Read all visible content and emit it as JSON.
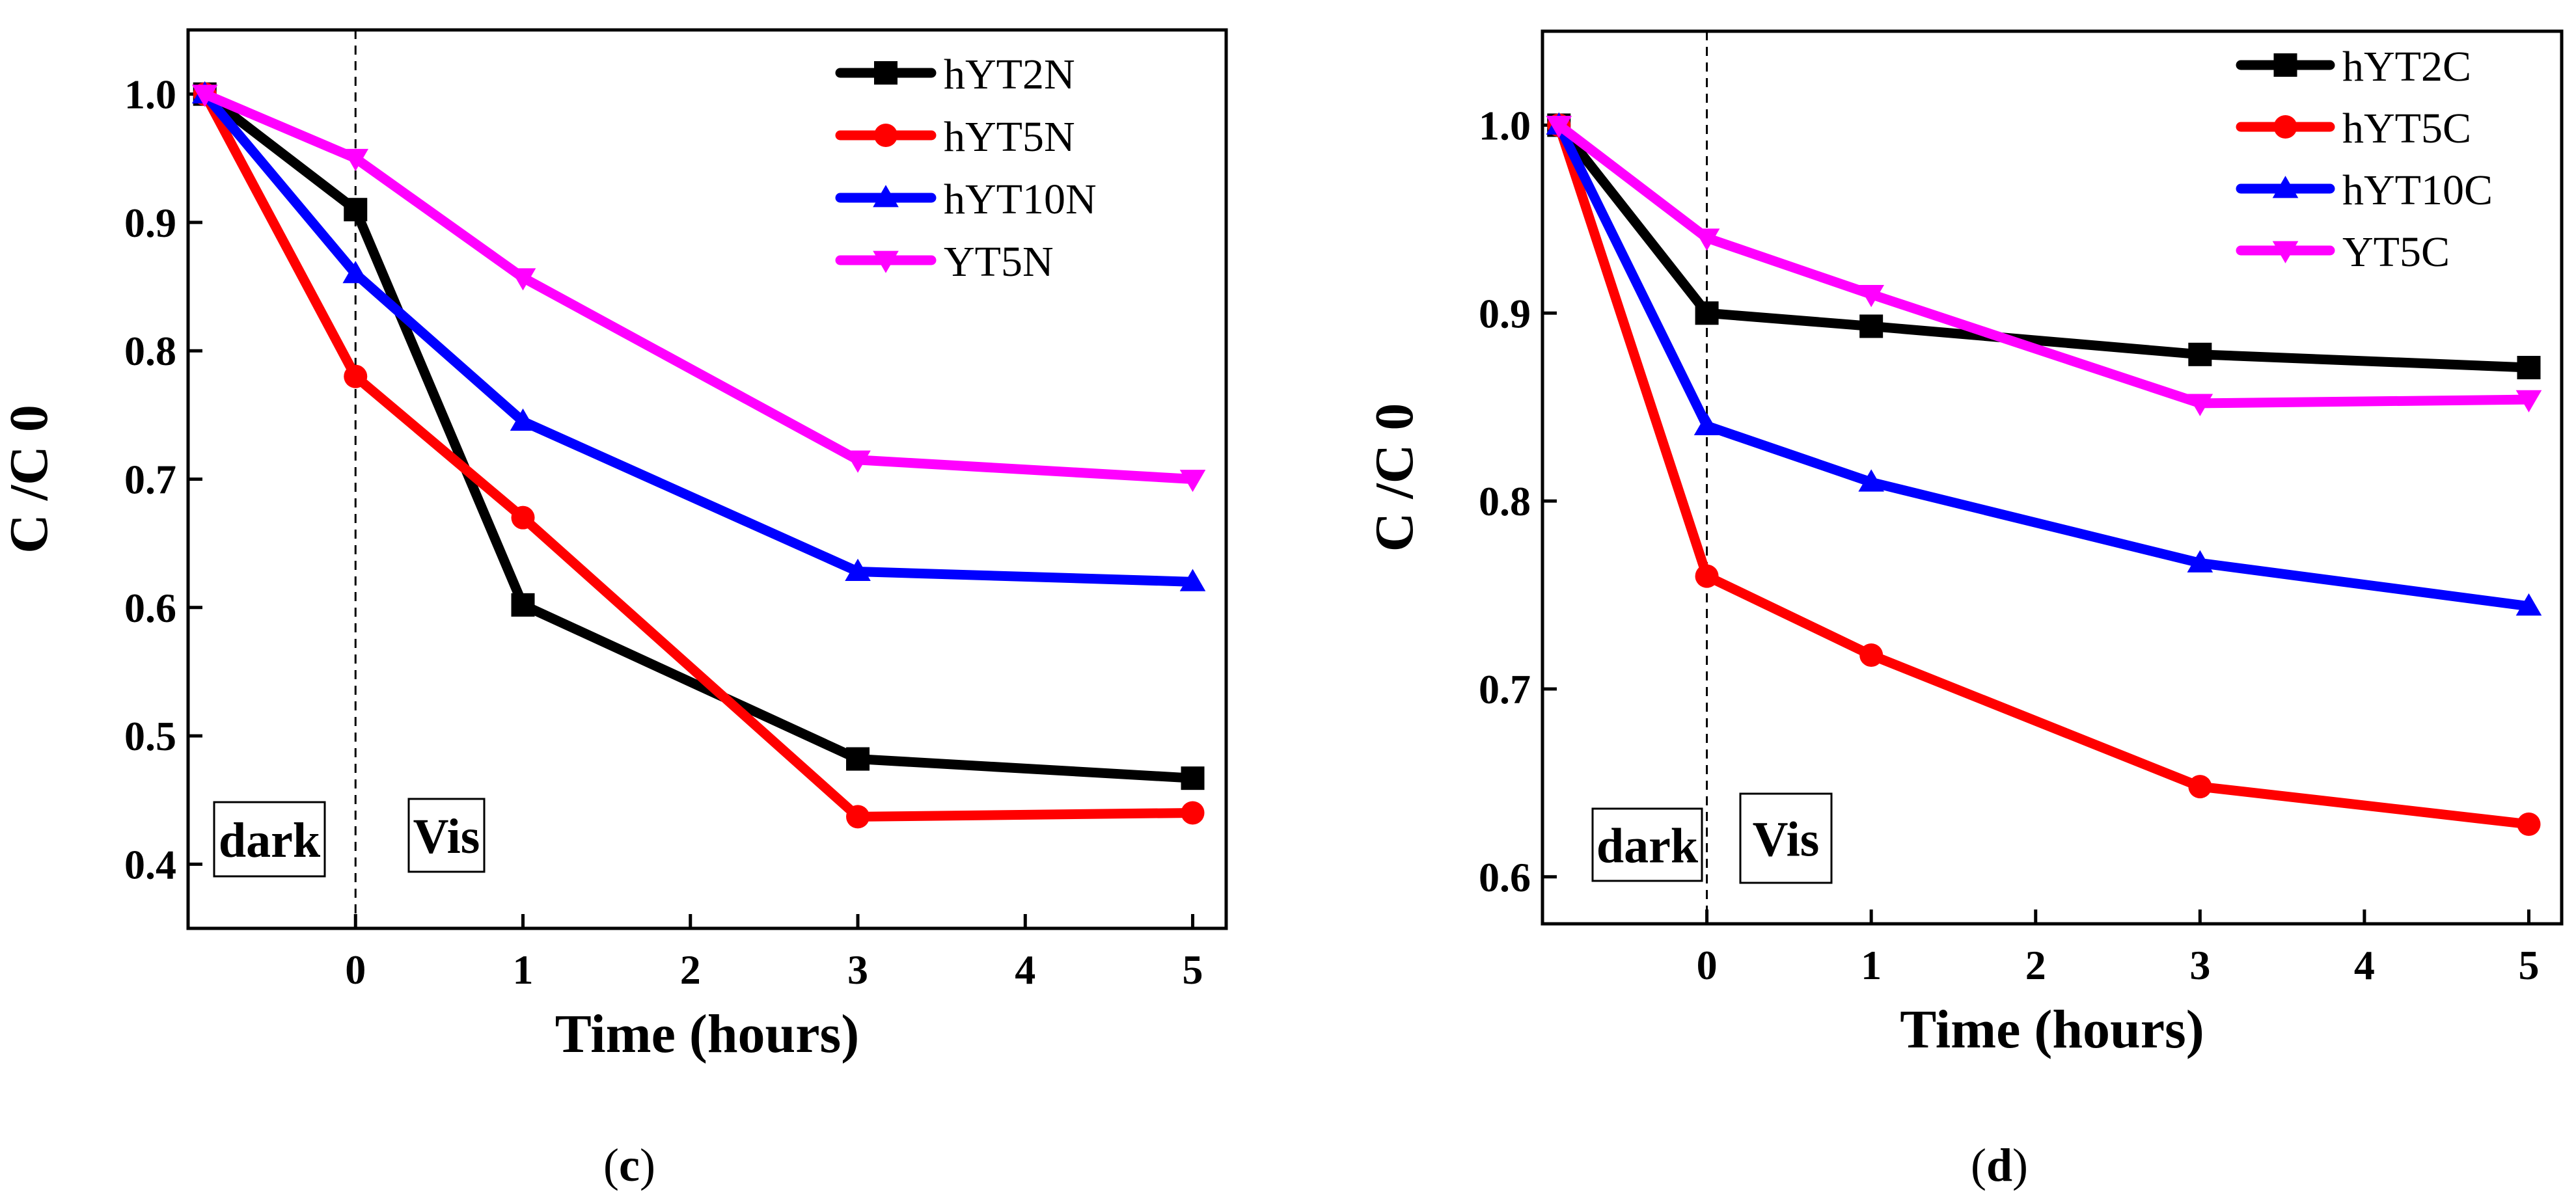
{
  "chart_data": [
    {
      "type": "line",
      "panel_label": "c",
      "xlabel": "Time (hours)",
      "ylabel": "C /C 0",
      "xlim": [
        -1,
        5.2
      ],
      "ylim": [
        0.35,
        1.05
      ],
      "xticks": [
        "0",
        "1",
        "2",
        "3",
        "4",
        "5"
      ],
      "yticks": [
        "0.4",
        "0.5",
        "0.6",
        "0.7",
        "0.8",
        "0.9",
        "1.0"
      ],
      "legend_position": "top-right",
      "annotations": [
        "dark",
        "Vis"
      ],
      "x": [
        -0.9,
        0,
        1,
        3,
        5
      ],
      "series": [
        {
          "name": "hYT2N",
          "color": "#000000",
          "marker": "square",
          "values": [
            1.0,
            0.91,
            0.602,
            0.482,
            0.467
          ]
        },
        {
          "name": "hYT5N",
          "color": "#ff0000",
          "marker": "circle",
          "values": [
            1.0,
            0.78,
            0.67,
            0.437,
            0.44
          ]
        },
        {
          "name": "hYT10N",
          "color": "#0000ff",
          "marker": "triangle-up",
          "values": [
            1.0,
            0.86,
            0.745,
            0.628,
            0.62
          ]
        },
        {
          "name": "YT5N",
          "color": "#ff00ff",
          "marker": "triangle-down",
          "values": [
            1.0,
            0.95,
            0.857,
            0.715,
            0.7
          ]
        }
      ]
    },
    {
      "type": "line",
      "panel_label": "d",
      "xlabel": "Time (hours)",
      "ylabel": "C /C 0",
      "xlim": [
        -1,
        5.2
      ],
      "ylim": [
        0.575,
        1.05
      ],
      "xticks": [
        "0",
        "1",
        "2",
        "3",
        "4",
        "5"
      ],
      "yticks": [
        "0.6",
        "0.7",
        "0.8",
        "0.9",
        "1.0"
      ],
      "legend_position": "top-right",
      "annotations": [
        "dark",
        "Vis"
      ],
      "x": [
        -0.9,
        0,
        1,
        3,
        5
      ],
      "series": [
        {
          "name": "hYT2C",
          "color": "#000000",
          "marker": "square",
          "values": [
            1.0,
            0.9,
            0.893,
            0.878,
            0.871
          ]
        },
        {
          "name": "hYT5C",
          "color": "#ff0000",
          "marker": "circle",
          "values": [
            1.0,
            0.76,
            0.718,
            0.648,
            0.628
          ]
        },
        {
          "name": "hYT10C",
          "color": "#0000ff",
          "marker": "triangle-up",
          "values": [
            1.0,
            0.84,
            0.81,
            0.767,
            0.744
          ]
        },
        {
          "name": "YT5C",
          "color": "#ff00ff",
          "marker": "triangle-down",
          "values": [
            1.0,
            0.94,
            0.91,
            0.852,
            0.854
          ]
        }
      ]
    }
  ],
  "captions": {
    "c": "c",
    "d": "d"
  }
}
